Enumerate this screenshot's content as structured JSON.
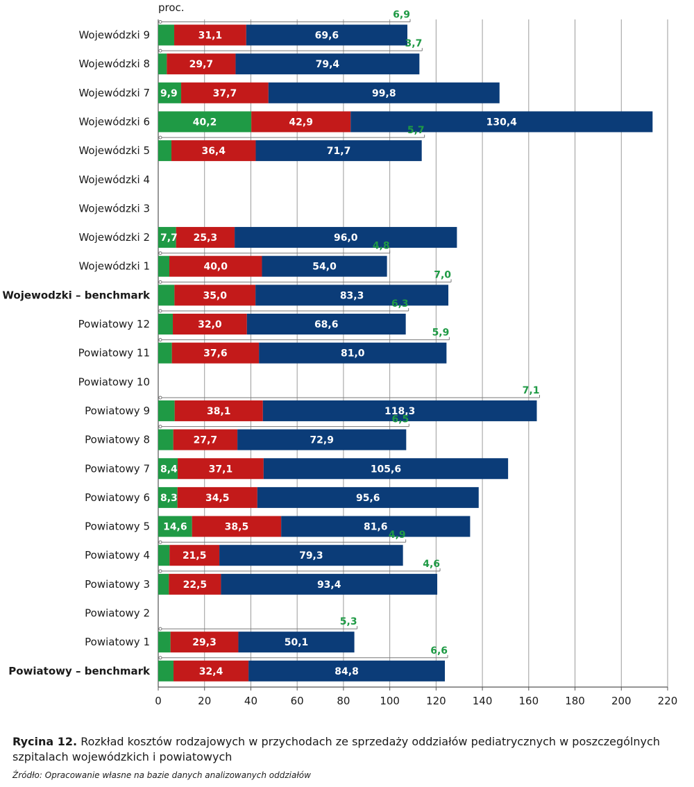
{
  "chart_data": {
    "type": "bar",
    "orientation": "horizontal",
    "stacked": true,
    "unit_label": "proc.",
    "xlim": [
      0,
      220
    ],
    "x_ticks": [
      0,
      20,
      40,
      60,
      80,
      100,
      120,
      140,
      160,
      180,
      200,
      220
    ],
    "grid": true,
    "colors": [
      "#1f9a45",
      "#c31a1a",
      "#0b3c78"
    ],
    "bold_categories": [
      "Wojewodzki – benchmark",
      "Powiatowy – benchmark"
    ],
    "categories": [
      "Wojewódzki 9",
      "Wojewódzki 8",
      "Wojewódzki 7",
      "Wojewódzki 6",
      "Wojewódzki 5",
      "Wojewódzki 4",
      "Wojewódzki 3",
      "Wojewódzki 2",
      "Wojewódzki 1",
      "Wojewodzki – benchmark",
      "Powiatowy 12",
      "Powiatowy 11",
      "Powiatowy 10",
      "Powiatowy 9",
      "Powiatowy 8",
      "Powiatowy 7",
      "Powiatowy 6",
      "Powiatowy 5",
      "Powiatowy 4",
      "Powiatowy 3",
      "Powiatowy 2",
      "Powiatowy 1",
      "Powiatowy – benchmark"
    ],
    "series": [
      {
        "values": [
          6.9,
          3.7,
          9.9,
          40.2,
          5.7,
          null,
          null,
          7.7,
          4.8,
          7.0,
          6.3,
          5.9,
          null,
          7.1,
          6.5,
          8.4,
          8.3,
          14.6,
          4.9,
          4.6,
          null,
          5.3,
          6.6
        ]
      },
      {
        "values": [
          31.1,
          29.7,
          37.7,
          42.9,
          36.4,
          null,
          null,
          25.3,
          40.0,
          35.0,
          32.0,
          37.6,
          null,
          38.1,
          27.7,
          37.1,
          34.5,
          38.5,
          21.5,
          22.5,
          null,
          29.3,
          32.4
        ]
      },
      {
        "values": [
          69.6,
          79.4,
          99.8,
          130.4,
          71.7,
          null,
          null,
          96.0,
          54.0,
          83.3,
          68.6,
          81.0,
          null,
          118.3,
          72.9,
          105.6,
          95.6,
          81.6,
          79.3,
          93.4,
          null,
          50.1,
          84.8
        ]
      }
    ],
    "value_labels": [
      [
        "6,9",
        "31,1",
        "69,6"
      ],
      [
        "3,7",
        "29,7",
        "79,4"
      ],
      [
        "9,9",
        "37,7",
        "99,8"
      ],
      [
        "40,2",
        "42,9",
        "130,4"
      ],
      [
        "5,7",
        "36,4",
        "71,7"
      ],
      null,
      null,
      [
        "7,7",
        "25,3",
        "96,0"
      ],
      [
        "4,8",
        "40,0",
        "54,0"
      ],
      [
        "7,0",
        "35,0",
        "83,3"
      ],
      [
        "6,3",
        "32,0",
        "68,6"
      ],
      [
        "5,9",
        "37,6",
        "81,0"
      ],
      null,
      [
        "7,1",
        "38,1",
        "118,3"
      ],
      [
        "6,5",
        "27,7",
        "72,9"
      ],
      [
        "8,4",
        "37,1",
        "105,6"
      ],
      [
        "8,3",
        "34,5",
        "95,6"
      ],
      [
        "14,6",
        "38,5",
        "81,6"
      ],
      [
        "4,9",
        "21,5",
        "79,3"
      ],
      [
        "4,6",
        "22,5",
        "93,4"
      ],
      null,
      [
        "5,3",
        "29,3",
        "50,1"
      ],
      [
        "6,6",
        "32,4",
        "84,8"
      ]
    ]
  },
  "caption": {
    "figure_number": "Rycina 12.",
    "text": " Rozkład kosztów rodzajowych w przychodach ze sprzedaży oddziałów pediatrycznych w poszczególnych szpitalach wojewódzkich i powiatowych",
    "source": "Źródło: Opracowanie własne na bazie danych analizowanych oddziałów"
  }
}
